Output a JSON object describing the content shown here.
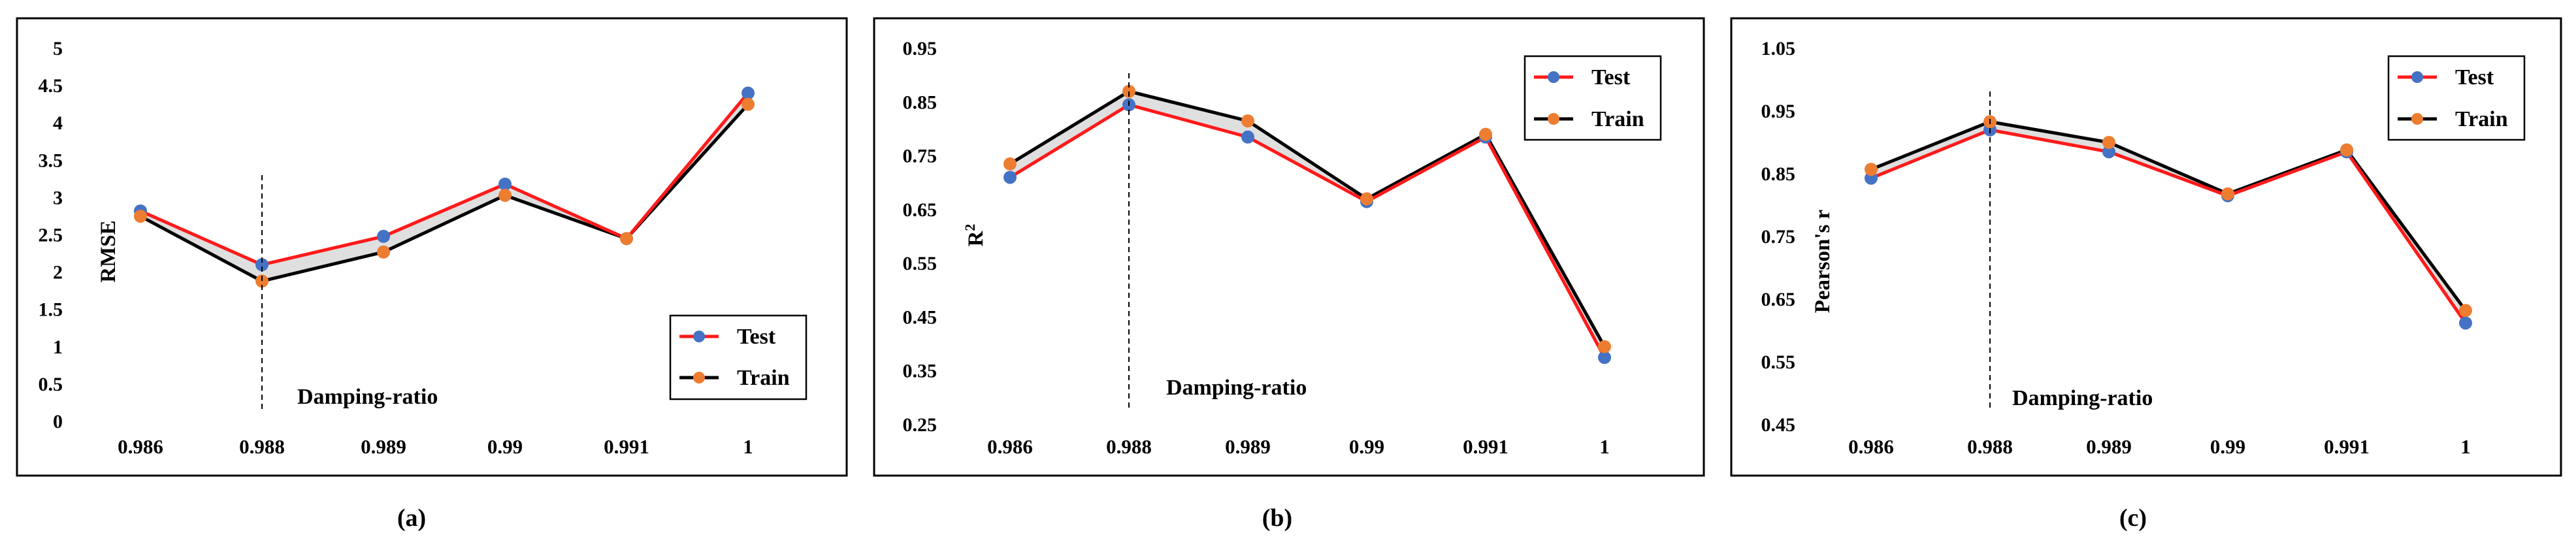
{
  "figure": {
    "captions": [
      "(a)",
      "(b)",
      "(c)"
    ]
  },
  "chart_data": [
    {
      "type": "line",
      "panel": "(a)",
      "categories": [
        "0.986",
        "0.988",
        "0.989",
        "0.99",
        "0.991",
        "1"
      ],
      "ylabel": "RMSE",
      "xlabel": "Damping-ratio",
      "annotation": "Damping-ratio",
      "marker_category": "0.988",
      "ylim": [
        0,
        5
      ],
      "yticks": [
        0,
        0.5,
        1,
        1.5,
        2,
        2.5,
        3,
        3.5,
        4,
        4.5,
        5
      ],
      "ytick_labels": [
        "0",
        "0.5",
        "1",
        "1.5",
        "2",
        "2.5",
        "3",
        "3.5",
        "4",
        "4.5",
        "5"
      ],
      "legend_position": "bottom-right",
      "series": [
        {
          "name": "Test",
          "values": [
            2.82,
            2.1,
            2.48,
            3.18,
            2.45,
            4.4
          ],
          "line_color": "#ff1a1a",
          "marker_color": "#4472c4"
        },
        {
          "name": "Train",
          "values": [
            2.75,
            1.88,
            2.27,
            3.03,
            2.45,
            4.25
          ],
          "line_color": "#000000",
          "marker_color": "#ed7d31"
        }
      ]
    },
    {
      "type": "line",
      "panel": "(b)",
      "categories": [
        "0.986",
        "0.988",
        "0.989",
        "0.99",
        "0.991",
        "1"
      ],
      "ylabel": "R",
      "ylabel_sup": "2",
      "xlabel": "Damping-ratio",
      "annotation": "Damping-ratio",
      "marker_category": "0.988",
      "ylim": [
        0.25,
        0.95
      ],
      "yticks": [
        0.25,
        0.35,
        0.45,
        0.55,
        0.65,
        0.75,
        0.85,
        0.95
      ],
      "ytick_labels": [
        "0.25",
        "0.35",
        "0.45",
        "0.55",
        "0.65",
        "0.75",
        "0.85",
        "0.95"
      ],
      "legend_position": "top-right",
      "series": [
        {
          "name": "Test",
          "values": [
            0.71,
            0.845,
            0.785,
            0.665,
            0.785,
            0.375
          ],
          "line_color": "#ff1a1a",
          "marker_color": "#4472c4"
        },
        {
          "name": "Train",
          "values": [
            0.735,
            0.87,
            0.815,
            0.67,
            0.79,
            0.395
          ],
          "line_color": "#000000",
          "marker_color": "#ed7d31"
        }
      ]
    },
    {
      "type": "line",
      "panel": "(c)",
      "categories": [
        "0.986",
        "0.988",
        "0.989",
        "0.99",
        "0.991",
        "1"
      ],
      "ylabel": "Pearson's r",
      "xlabel": "Damping-ratio",
      "annotation": "Damping-ratio",
      "marker_category": "0.988",
      "ylim": [
        0.45,
        1.05
      ],
      "yticks": [
        0.45,
        0.55,
        0.65,
        0.75,
        0.85,
        0.95,
        1.05
      ],
      "ytick_labels": [
        "0.45",
        "0.55",
        "0.65",
        "0.75",
        "0.85",
        "0.95",
        "1.05"
      ],
      "legend_position": "top-right",
      "series": [
        {
          "name": "Test",
          "values": [
            0.843,
            0.92,
            0.885,
            0.815,
            0.885,
            0.612
          ],
          "line_color": "#ff1a1a",
          "marker_color": "#4472c4"
        },
        {
          "name": "Train",
          "values": [
            0.857,
            0.933,
            0.9,
            0.818,
            0.888,
            0.632
          ],
          "line_color": "#000000",
          "marker_color": "#ed7d31"
        }
      ]
    }
  ]
}
